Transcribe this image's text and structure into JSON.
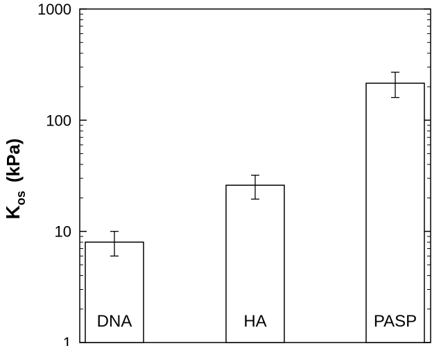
{
  "chart_data": {
    "type": "bar",
    "categories": [
      "DNA",
      "HA",
      "PASP"
    ],
    "values": [
      8,
      26,
      215
    ],
    "error_low": [
      6,
      19.5,
      160
    ],
    "error_high": [
      10,
      32,
      270
    ],
    "ylabel_main": "K",
    "ylabel_sub": "os",
    "ylabel_unit": "(kPa)",
    "yscale": "log",
    "ylim": [
      1,
      1000
    ],
    "yticks": [
      {
        "value": 1,
        "label": "1"
      },
      {
        "value": 10,
        "label": "10"
      },
      {
        "value": 100,
        "label": "100"
      },
      {
        "value": 1000,
        "label": "1000"
      }
    ],
    "grid": false,
    "legend": "none",
    "bar_fill": "#ffffff",
    "stroke_color": "#000000"
  }
}
